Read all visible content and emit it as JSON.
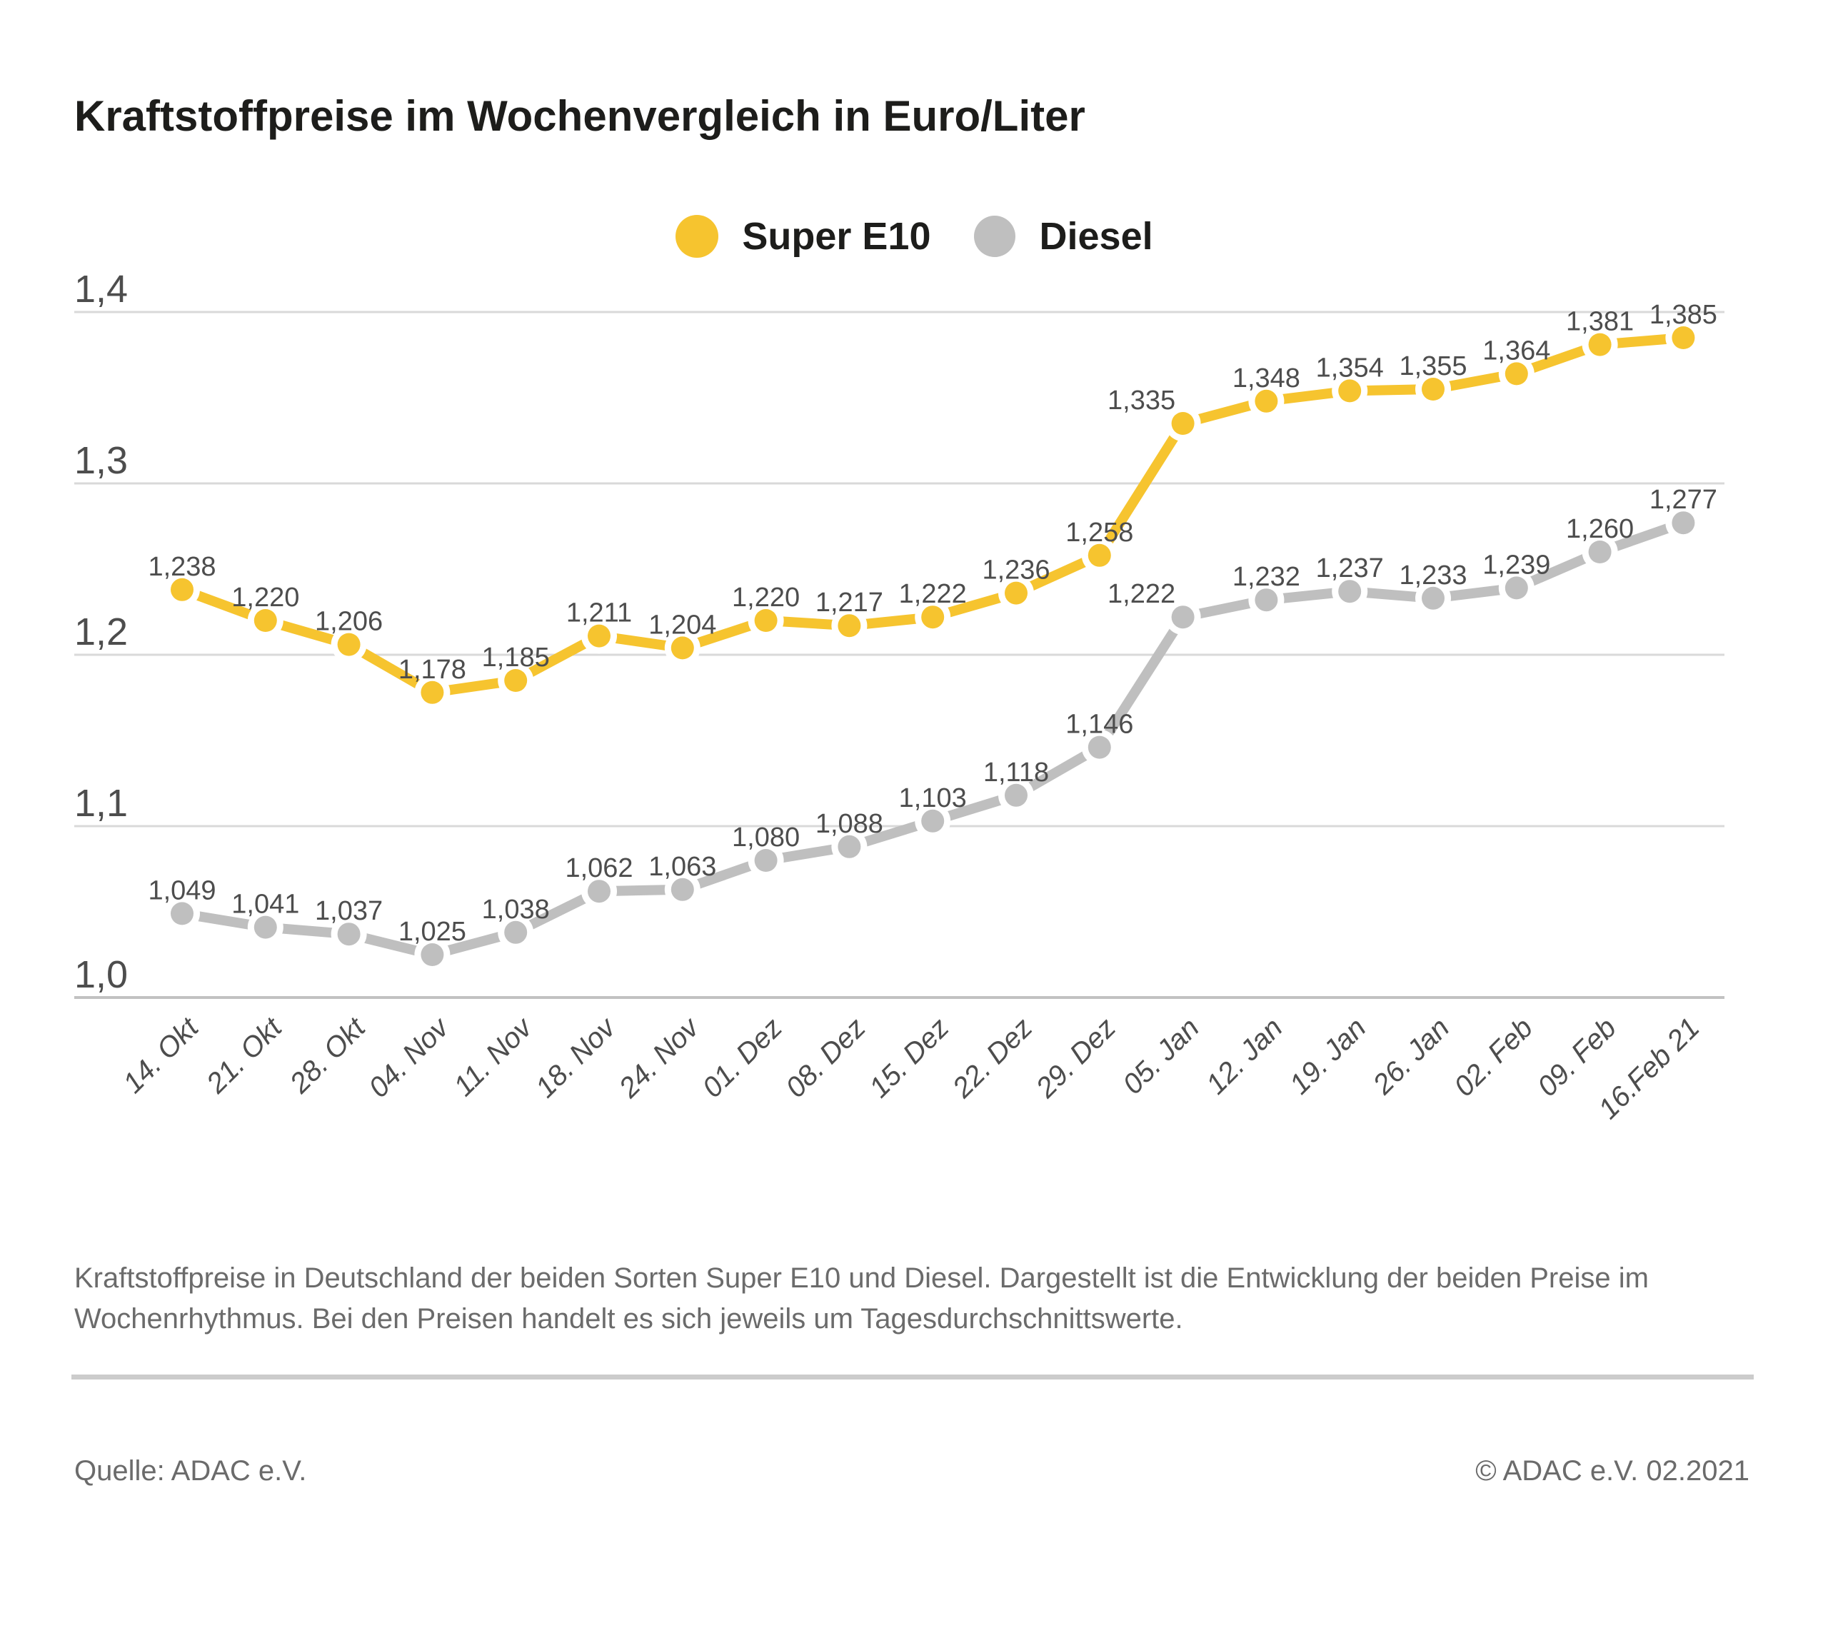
{
  "title": "Kraftstoffpreise im Wochenvergleich in Euro/Liter",
  "legend": {
    "items": [
      {
        "label": "Super E10",
        "color": "#F6C42F"
      },
      {
        "label": "Diesel",
        "color": "#BFBFBF"
      }
    ]
  },
  "chart_data": {
    "type": "line",
    "title": "Kraftstoffpreise im Wochenvergleich in Euro/Liter",
    "xlabel": "",
    "ylabel": "Euro/Liter",
    "ylim": [
      1.0,
      1.4
    ],
    "grid": true,
    "legend_position": "top-center",
    "yticks": {
      "values": [
        1.4,
        1.3,
        1.2,
        1.1,
        1.0
      ],
      "labels": [
        "1,4",
        "1,3",
        "1,2",
        "1,1",
        "1,0"
      ]
    },
    "categories": [
      "14. Okt",
      "21. Okt",
      "28. Okt",
      "04. Nov",
      "11. Nov",
      "18. Nov",
      "24. Nov",
      "01. Dez",
      "08. Dez",
      "15. Dez",
      "22. Dez",
      "29. Dez",
      "05. Jan",
      "12. Jan",
      "19. Jan",
      "26. Jan",
      "02. Feb",
      "09. Feb",
      "16.Feb 21"
    ],
    "series": [
      {
        "name": "Super E10",
        "color": "#F6C42F",
        "values": [
          1.238,
          1.22,
          1.206,
          1.178,
          1.185,
          1.211,
          1.204,
          1.22,
          1.217,
          1.222,
          1.236,
          1.258,
          1.335,
          1.348,
          1.354,
          1.355,
          1.364,
          1.381,
          1.385
        ],
        "labels": [
          "1,238",
          "1,220",
          "1,206",
          "1,178",
          "1,185",
          "1,211",
          "1,204",
          "1,220",
          "1,217",
          "1,222",
          "1,236",
          "1,258",
          "1,335",
          "1,348",
          "1,354",
          "1,355",
          "1,364",
          "1,381",
          "1,385"
        ]
      },
      {
        "name": "Diesel",
        "color": "#BFBFBF",
        "values": [
          1.049,
          1.041,
          1.037,
          1.025,
          1.038,
          1.062,
          1.063,
          1.08,
          1.088,
          1.103,
          1.118,
          1.146,
          1.222,
          1.232,
          1.237,
          1.233,
          1.239,
          1.26,
          1.277
        ],
        "labels": [
          "1,049",
          "1,041",
          "1,037",
          "1,025",
          "1,038",
          "1,062",
          "1,063",
          "1,080",
          "1,088",
          "1,103",
          "1,118",
          "1,146",
          "1,222",
          "1,232",
          "1,237",
          "1,233",
          "1,239",
          "1,260",
          "1,277"
        ]
      }
    ]
  },
  "caption": {
    "lines": [
      "Kraftstoffpreise in Deutschland der beiden Sorten Super E10 und Diesel. Dargestellt ist die Entwicklung der beiden Preise im",
      "Wochenrhythmus. Bei den Preisen handelt es sich jeweils um Tagesdurchschnittswerte."
    ]
  },
  "footer": {
    "source_left": "Quelle: ADAC e.V.",
    "copyright_right": "© ADAC e.V. 02.2021"
  }
}
